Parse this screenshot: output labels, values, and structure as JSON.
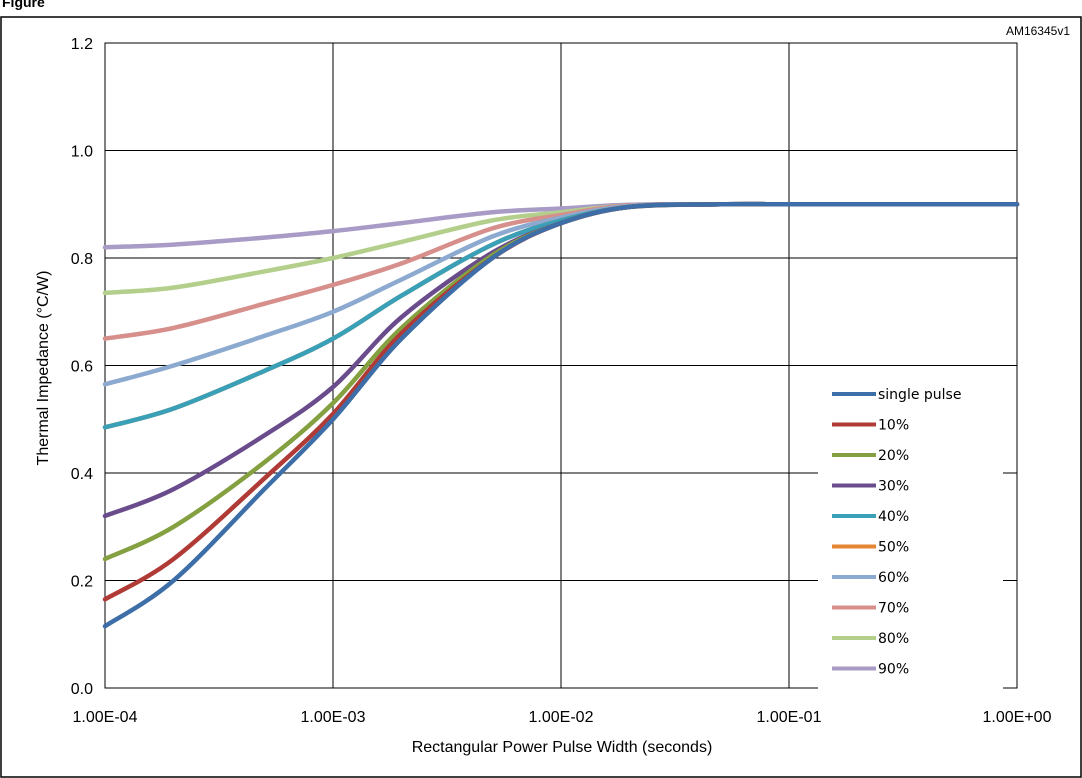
{
  "figure": {
    "heading": "Figure",
    "code": "AM16345v1"
  },
  "chart_data": {
    "type": "line",
    "title": "",
    "xlabel": "Rectangular Power Pulse Width (seconds)",
    "ylabel": "Thermal Impedance (°C/W)",
    "x_scale": "log",
    "xlim": [
      0.0001,
      1
    ],
    "ylim": [
      0,
      1.2
    ],
    "x_ticks": [
      "1.00E-04",
      "1.00E-03",
      "1.00E-02",
      "1.00E-01",
      "1.00E+00"
    ],
    "y_ticks": [
      "0.0",
      "0.2",
      "0.4",
      "0.6",
      "0.8",
      "1.0",
      "1.2"
    ],
    "grid": true,
    "legend_position": "right",
    "x": [
      0.0001,
      0.0002,
      0.0005,
      0.001,
      0.002,
      0.005,
      0.01,
      0.02,
      0.05,
      0.1,
      0.2,
      0.5,
      1
    ],
    "series": [
      {
        "name": "single pulse",
        "color": "#3e6ea8",
        "values": [
          0.115,
          0.2,
          0.37,
          0.5,
          0.65,
          0.8,
          0.865,
          0.895,
          0.9,
          0.9,
          0.9,
          0.9,
          0.9
        ]
      },
      {
        "name": "10%",
        "color": "#b03a36",
        "values": [
          0.165,
          0.24,
          0.39,
          0.51,
          0.66,
          0.8,
          0.865,
          0.895,
          0.9,
          0.9,
          0.9,
          0.9,
          0.9
        ]
      },
      {
        "name": "20%",
        "color": "#84a040",
        "values": [
          0.24,
          0.3,
          0.42,
          0.53,
          0.67,
          0.805,
          0.865,
          0.895,
          0.9,
          0.9,
          0.9,
          0.9,
          0.9
        ]
      },
      {
        "name": "30%",
        "color": "#6a4c8c",
        "values": [
          0.32,
          0.37,
          0.47,
          0.56,
          0.69,
          0.81,
          0.865,
          0.895,
          0.9,
          0.9,
          0.9,
          0.9,
          0.9
        ]
      },
      {
        "name": "40%",
        "color": "#3aa0b8",
        "values": [
          0.485,
          0.52,
          0.59,
          0.65,
          0.73,
          0.825,
          0.87,
          0.895,
          0.9,
          0.9,
          0.9,
          0.9,
          0.9
        ]
      },
      {
        "name": "50%",
        "color": "#e48634",
        "values": [
          0.485,
          0.52,
          0.59,
          0.65,
          0.73,
          0.825,
          0.87,
          0.895,
          0.9,
          0.9,
          0.9,
          0.9,
          0.9
        ]
      },
      {
        "name": "60%",
        "color": "#8caacf",
        "values": [
          0.565,
          0.6,
          0.655,
          0.7,
          0.76,
          0.84,
          0.875,
          0.897,
          0.9,
          0.9,
          0.9,
          0.9,
          0.9
        ]
      },
      {
        "name": "70%",
        "color": "#d68f8b",
        "values": [
          0.65,
          0.67,
          0.715,
          0.75,
          0.79,
          0.855,
          0.88,
          0.898,
          0.9,
          0.9,
          0.9,
          0.9,
          0.9
        ]
      },
      {
        "name": "80%",
        "color": "#b3cf8b",
        "values": [
          0.735,
          0.745,
          0.775,
          0.8,
          0.83,
          0.87,
          0.885,
          0.898,
          0.9,
          0.9,
          0.9,
          0.9,
          0.9
        ]
      },
      {
        "name": "90%",
        "color": "#a89bc6",
        "values": [
          0.82,
          0.825,
          0.838,
          0.85,
          0.865,
          0.885,
          0.892,
          0.899,
          0.9,
          0.9,
          0.9,
          0.9,
          0.9
        ]
      }
    ]
  }
}
